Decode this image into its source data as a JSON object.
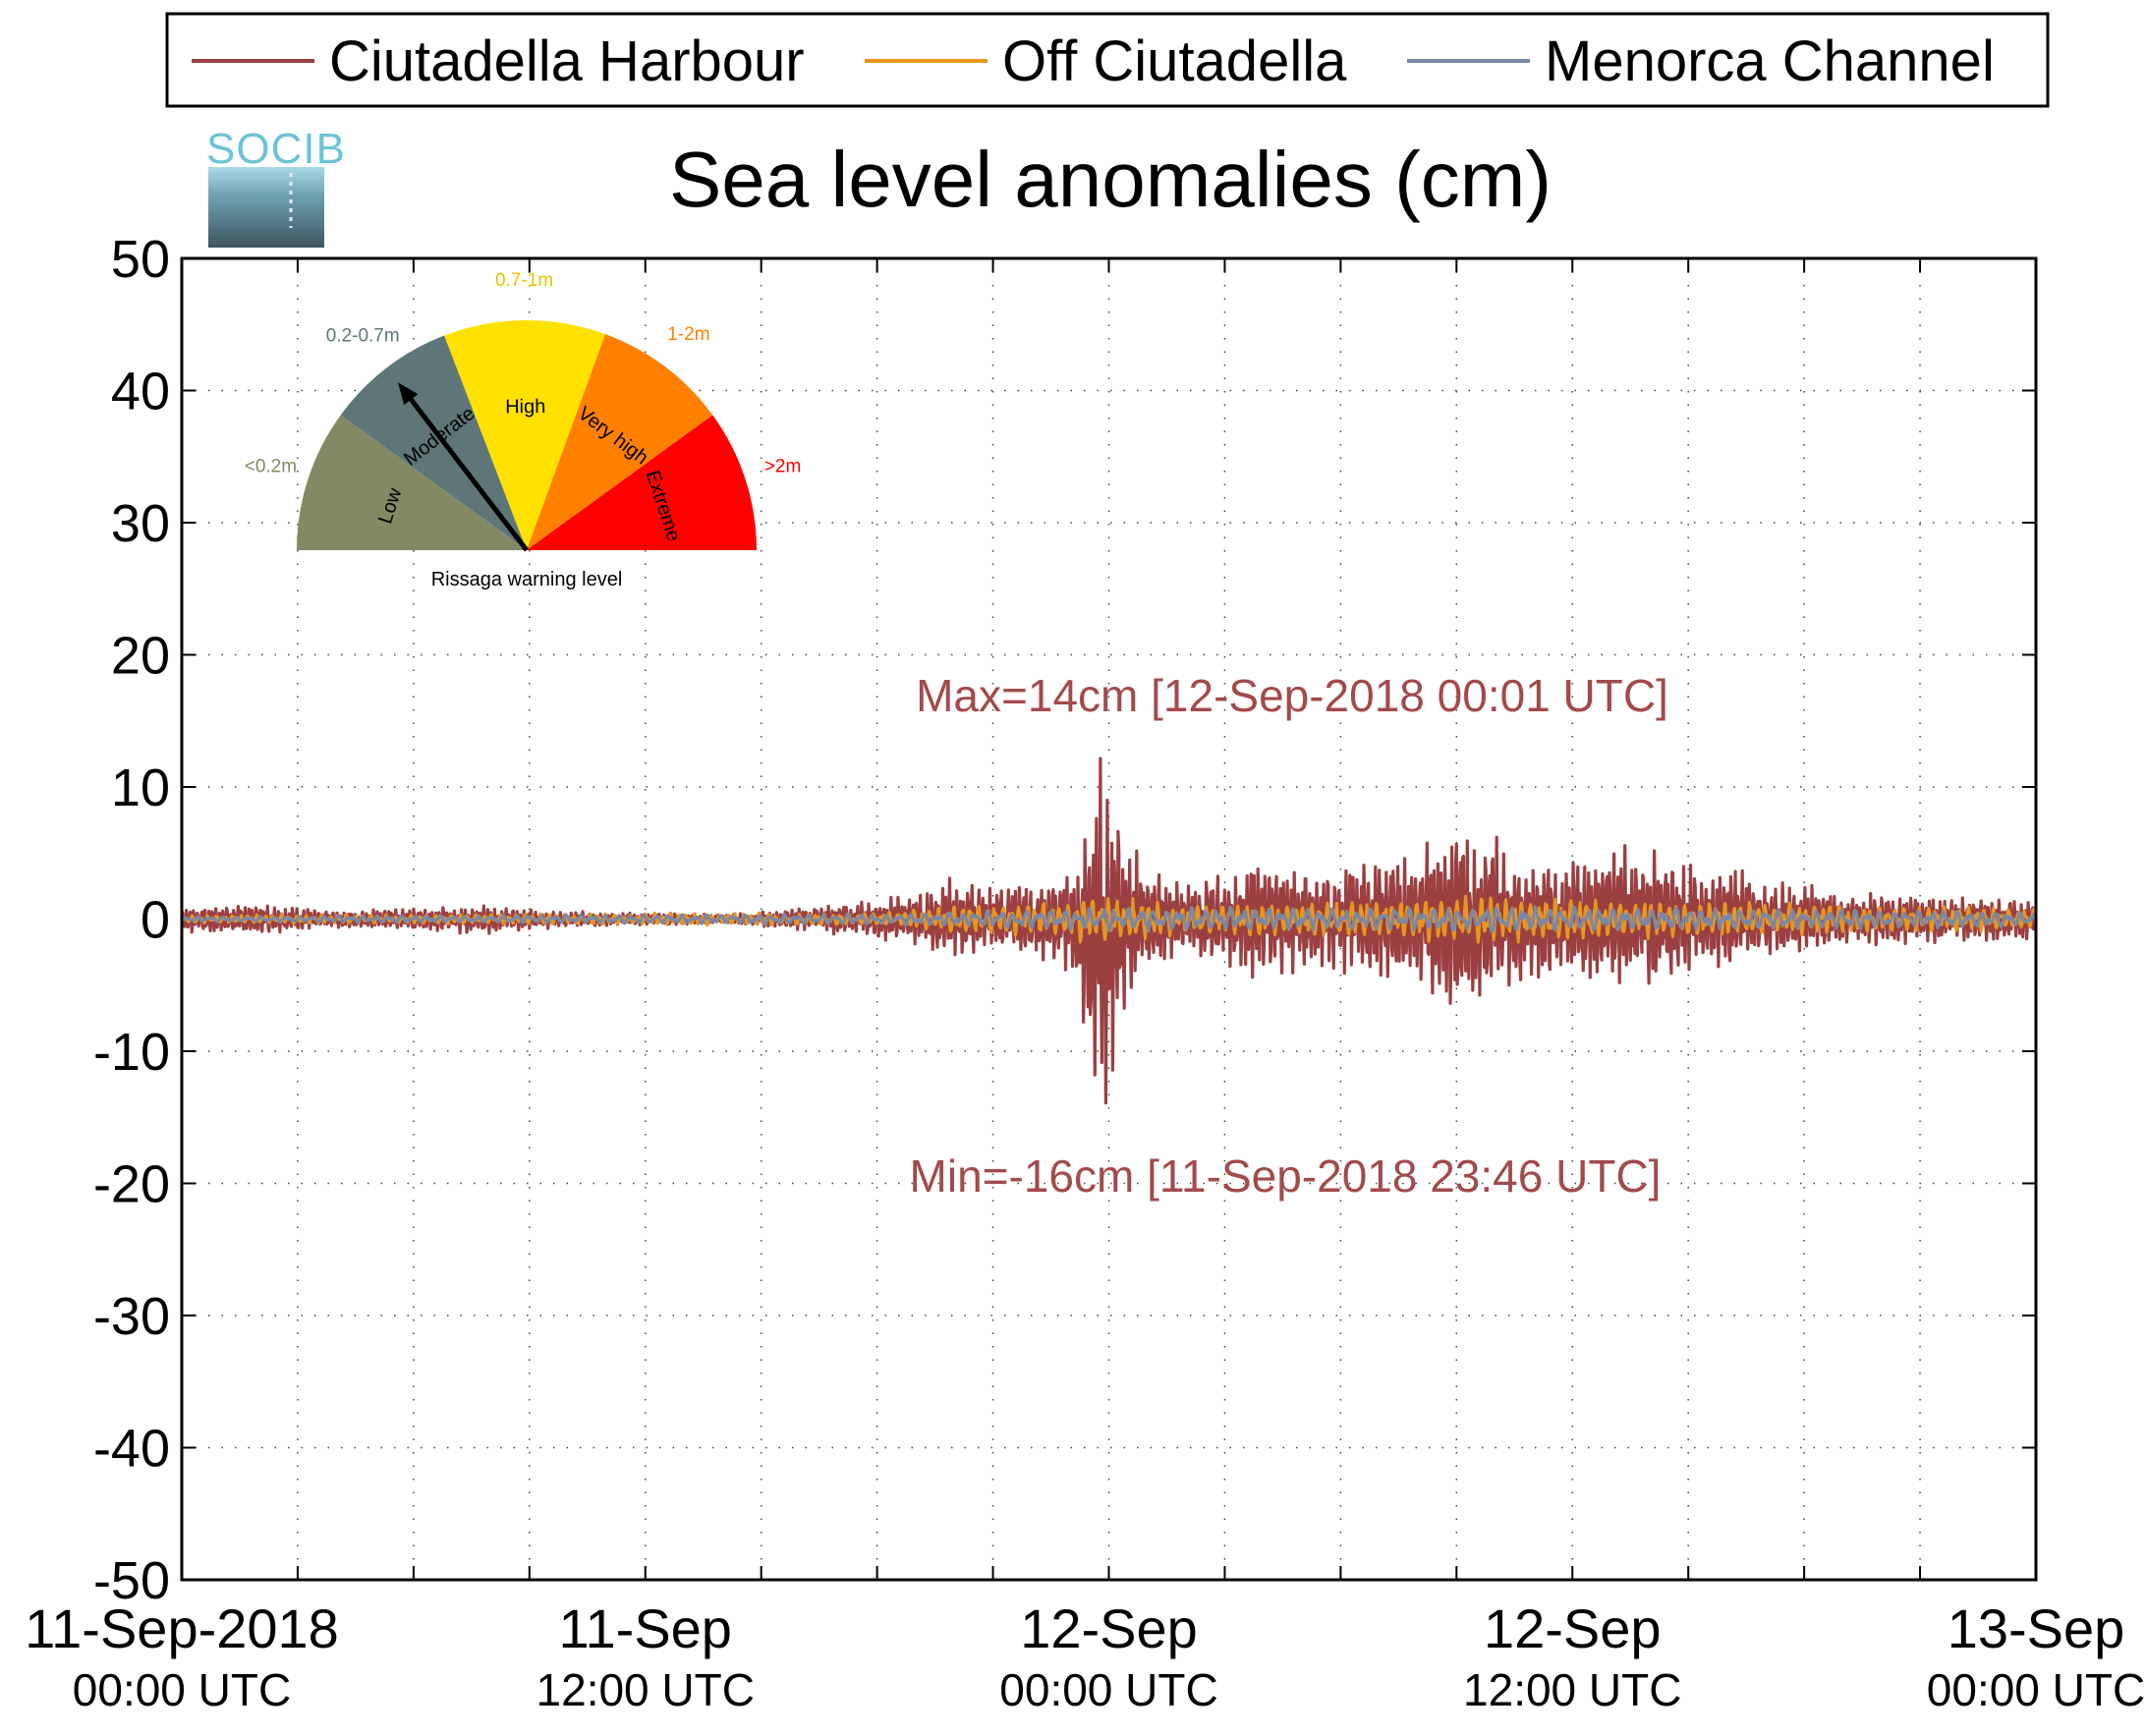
{
  "chart_data": {
    "type": "line",
    "title": "Sea level anomalies (cm)",
    "xlabel": "",
    "ylabel": "",
    "ylim": [
      -50,
      50
    ],
    "yticks": [
      "50",
      "40",
      "30",
      "20",
      "10",
      "0",
      "-10",
      "-20",
      "-30",
      "-40",
      "-50"
    ],
    "xlim_hours": [
      0,
      48
    ],
    "xtick_labels": [
      {
        "date": "11-Sep-2018",
        "time": "00:00 UTC"
      },
      {
        "date": "11-Sep",
        "time": "12:00 UTC"
      },
      {
        "date": "12-Sep",
        "time": "00:00 UTC"
      },
      {
        "date": "12-Sep",
        "time": "12:00 UTC"
      },
      {
        "date": "13-Sep",
        "time": "00:00 UTC"
      }
    ],
    "grid": true,
    "legend_position": "top",
    "series": [
      {
        "name": "Ciutadella Harbour",
        "color": "#9b3f41",
        "envelope": [
          [
            0,
            1
          ],
          [
            2,
            1.2
          ],
          [
            4,
            0.6
          ],
          [
            6,
            0.9
          ],
          [
            8,
            1.1
          ],
          [
            10,
            0.6
          ],
          [
            12,
            0.5
          ],
          [
            14,
            0.4
          ],
          [
            16,
            0.8
          ],
          [
            18,
            1.5
          ],
          [
            19,
            2
          ],
          [
            20,
            3
          ],
          [
            21,
            2.5
          ],
          [
            22,
            2.8
          ],
          [
            23,
            4
          ],
          [
            23.5,
            10
          ],
          [
            23.8,
            14
          ],
          [
            24,
            13
          ],
          [
            24.3,
            9
          ],
          [
            24.6,
            6
          ],
          [
            25,
            4
          ],
          [
            26,
            3
          ],
          [
            27,
            3.5
          ],
          [
            28,
            4.5
          ],
          [
            29,
            4
          ],
          [
            30,
            4.5
          ],
          [
            31,
            5
          ],
          [
            32,
            5
          ],
          [
            32.3,
            7
          ],
          [
            33,
            8
          ],
          [
            34,
            7
          ],
          [
            34.5,
            5
          ],
          [
            35,
            5
          ],
          [
            36,
            5
          ],
          [
            37,
            5.5
          ],
          [
            38,
            5
          ],
          [
            39,
            4.5
          ],
          [
            40,
            4
          ],
          [
            41,
            3
          ],
          [
            42,
            2.5
          ],
          [
            43,
            2
          ],
          [
            45,
            1.8
          ],
          [
            48,
            1.5
          ]
        ],
        "annotations": {
          "max": "Max=14cm [12-Sep-2018 00:01 UTC]",
          "min": "Min=-16cm [11-Sep-2018 23:46 UTC]"
        }
      },
      {
        "name": "Off Ciutadella",
        "color": "#e8961e",
        "envelope": [
          [
            0,
            0.3
          ],
          [
            18,
            0.5
          ],
          [
            20,
            1
          ],
          [
            22,
            1.2
          ],
          [
            23.5,
            1.8
          ],
          [
            24,
            1.6
          ],
          [
            26,
            1.2
          ],
          [
            30,
            1.3
          ],
          [
            32,
            1.6
          ],
          [
            34,
            1.8
          ],
          [
            36,
            1.6
          ],
          [
            40,
            1.3
          ],
          [
            44,
            1
          ],
          [
            48,
            0.8
          ]
        ]
      },
      {
        "name": "Menorca Channel",
        "color": "#7a88a8",
        "envelope": [
          [
            0,
            0.2
          ],
          [
            18,
            0.4
          ],
          [
            22,
            0.7
          ],
          [
            24,
            0.9
          ],
          [
            30,
            0.8
          ],
          [
            34,
            1
          ],
          [
            40,
            0.8
          ],
          [
            48,
            0.6
          ]
        ]
      }
    ]
  },
  "logo": {
    "text": "SOCIB"
  },
  "gauge": {
    "caption": "Rissaga warning level",
    "segments": [
      {
        "name": "Low",
        "range": "<0.2m",
        "color": "#838964",
        "label_color": "#838964"
      },
      {
        "name": "Moderate",
        "range": "0.2-0.7m",
        "color": "#5f7678",
        "label_color": "#5f7678"
      },
      {
        "name": "High",
        "range": "0.7-1m",
        "color": "#ffe100",
        "label_color": "#e8c400"
      },
      {
        "name": "Very high",
        "range": "1-2m",
        "color": "#ff8000",
        "label_color": "#ff8000"
      },
      {
        "name": "Extreme",
        "range": ">2m",
        "color": "#ff0000",
        "label_color": "#ff0000"
      }
    ],
    "current_level": "Moderate"
  }
}
